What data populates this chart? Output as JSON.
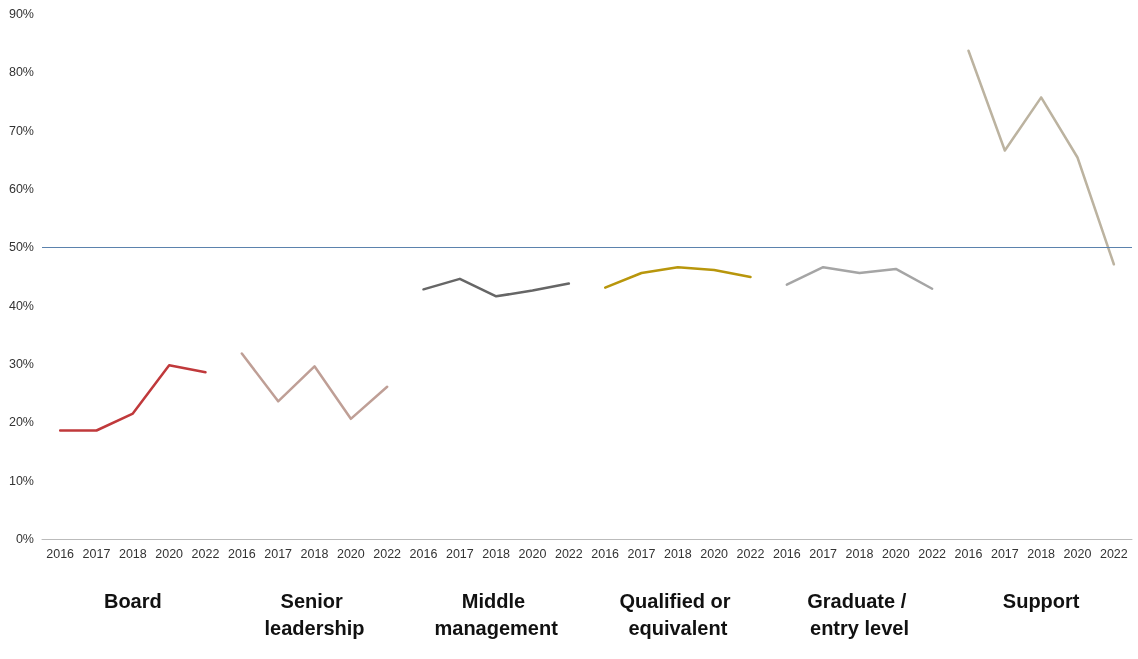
{
  "chart_data": {
    "type": "line",
    "marker": "none",
    "categories": [
      "2016",
      "2017",
      "2018",
      "2020",
      "2022",
      "2016",
      "2017",
      "2018",
      "2020",
      "2022",
      "2016",
      "2017",
      "2018",
      "2020",
      "2022",
      "2016",
      "2017",
      "2018",
      "2020",
      "2022",
      "2016",
      "2017",
      "2018",
      "2020",
      "2022",
      "2016",
      "2017",
      "2018",
      "2020",
      "2022"
    ],
    "ylim": [
      0,
      90
    ],
    "yticks": [
      {
        "value": 0,
        "label": "0%"
      },
      {
        "value": 10,
        "label": "10%"
      },
      {
        "value": 20,
        "label": "20%"
      },
      {
        "value": 30,
        "label": "30%"
      },
      {
        "value": 40,
        "label": "40%"
      },
      {
        "value": 50,
        "label": "50%"
      },
      {
        "value": 60,
        "label": "60%"
      },
      {
        "value": 70,
        "label": "70%"
      },
      {
        "value": 80,
        "label": "80%"
      },
      {
        "value": 90,
        "label": "90%"
      }
    ],
    "annotations": [
      "Board",
      "Senior leadership",
      "Middle management",
      "Qualified or equivalent",
      "Graduate / entry level",
      "Support"
    ],
    "ref_lines": [
      {
        "axis": "y",
        "value": 50,
        "color": "#5b82ad"
      }
    ],
    "series": [
      {
        "color": "#c0393b",
        "values": [
          18.6,
          18.6,
          21.5,
          29.8,
          28.6,
          null,
          null,
          null,
          null,
          null,
          null,
          null,
          null,
          null,
          null,
          null,
          null,
          null,
          null,
          null,
          null,
          null,
          null,
          null,
          null,
          null,
          null,
          null,
          null,
          null
        ]
      },
      {
        "color": "#bf9f96",
        "values": [
          null,
          null,
          null,
          null,
          null,
          31.8,
          23.6,
          29.6,
          20.6,
          26.1,
          null,
          null,
          null,
          null,
          null,
          null,
          null,
          null,
          null,
          null,
          null,
          null,
          null,
          null,
          null,
          null,
          null,
          null,
          null,
          null
        ]
      },
      {
        "color": "#666666",
        "values": [
          null,
          null,
          null,
          null,
          null,
          null,
          null,
          null,
          null,
          null,
          42.8,
          44.6,
          41.6,
          42.6,
          43.8,
          null,
          null,
          null,
          null,
          null,
          null,
          null,
          null,
          null,
          null,
          null,
          null,
          null,
          null,
          null
        ]
      },
      {
        "color": "#b8960c",
        "values": [
          null,
          null,
          null,
          null,
          null,
          null,
          null,
          null,
          null,
          null,
          null,
          null,
          null,
          null,
          null,
          43.1,
          45.6,
          46.6,
          46.1,
          44.9,
          null,
          null,
          null,
          null,
          null,
          null,
          null,
          null,
          null,
          null
        ]
      },
      {
        "color": "#a5a5a5",
        "values": [
          null,
          null,
          null,
          null,
          null,
          null,
          null,
          null,
          null,
          null,
          null,
          null,
          null,
          null,
          null,
          null,
          null,
          null,
          null,
          null,
          43.6,
          46.6,
          45.6,
          46.3,
          42.9,
          null,
          null,
          null,
          null,
          null
        ]
      },
      {
        "color": "#bcb3a0",
        "values": [
          null,
          null,
          null,
          null,
          null,
          null,
          null,
          null,
          null,
          null,
          null,
          null,
          null,
          null,
          null,
          null,
          null,
          null,
          null,
          null,
          null,
          null,
          null,
          null,
          null,
          83.7,
          66.6,
          75.7,
          65.4,
          47.1
        ]
      }
    ]
  }
}
